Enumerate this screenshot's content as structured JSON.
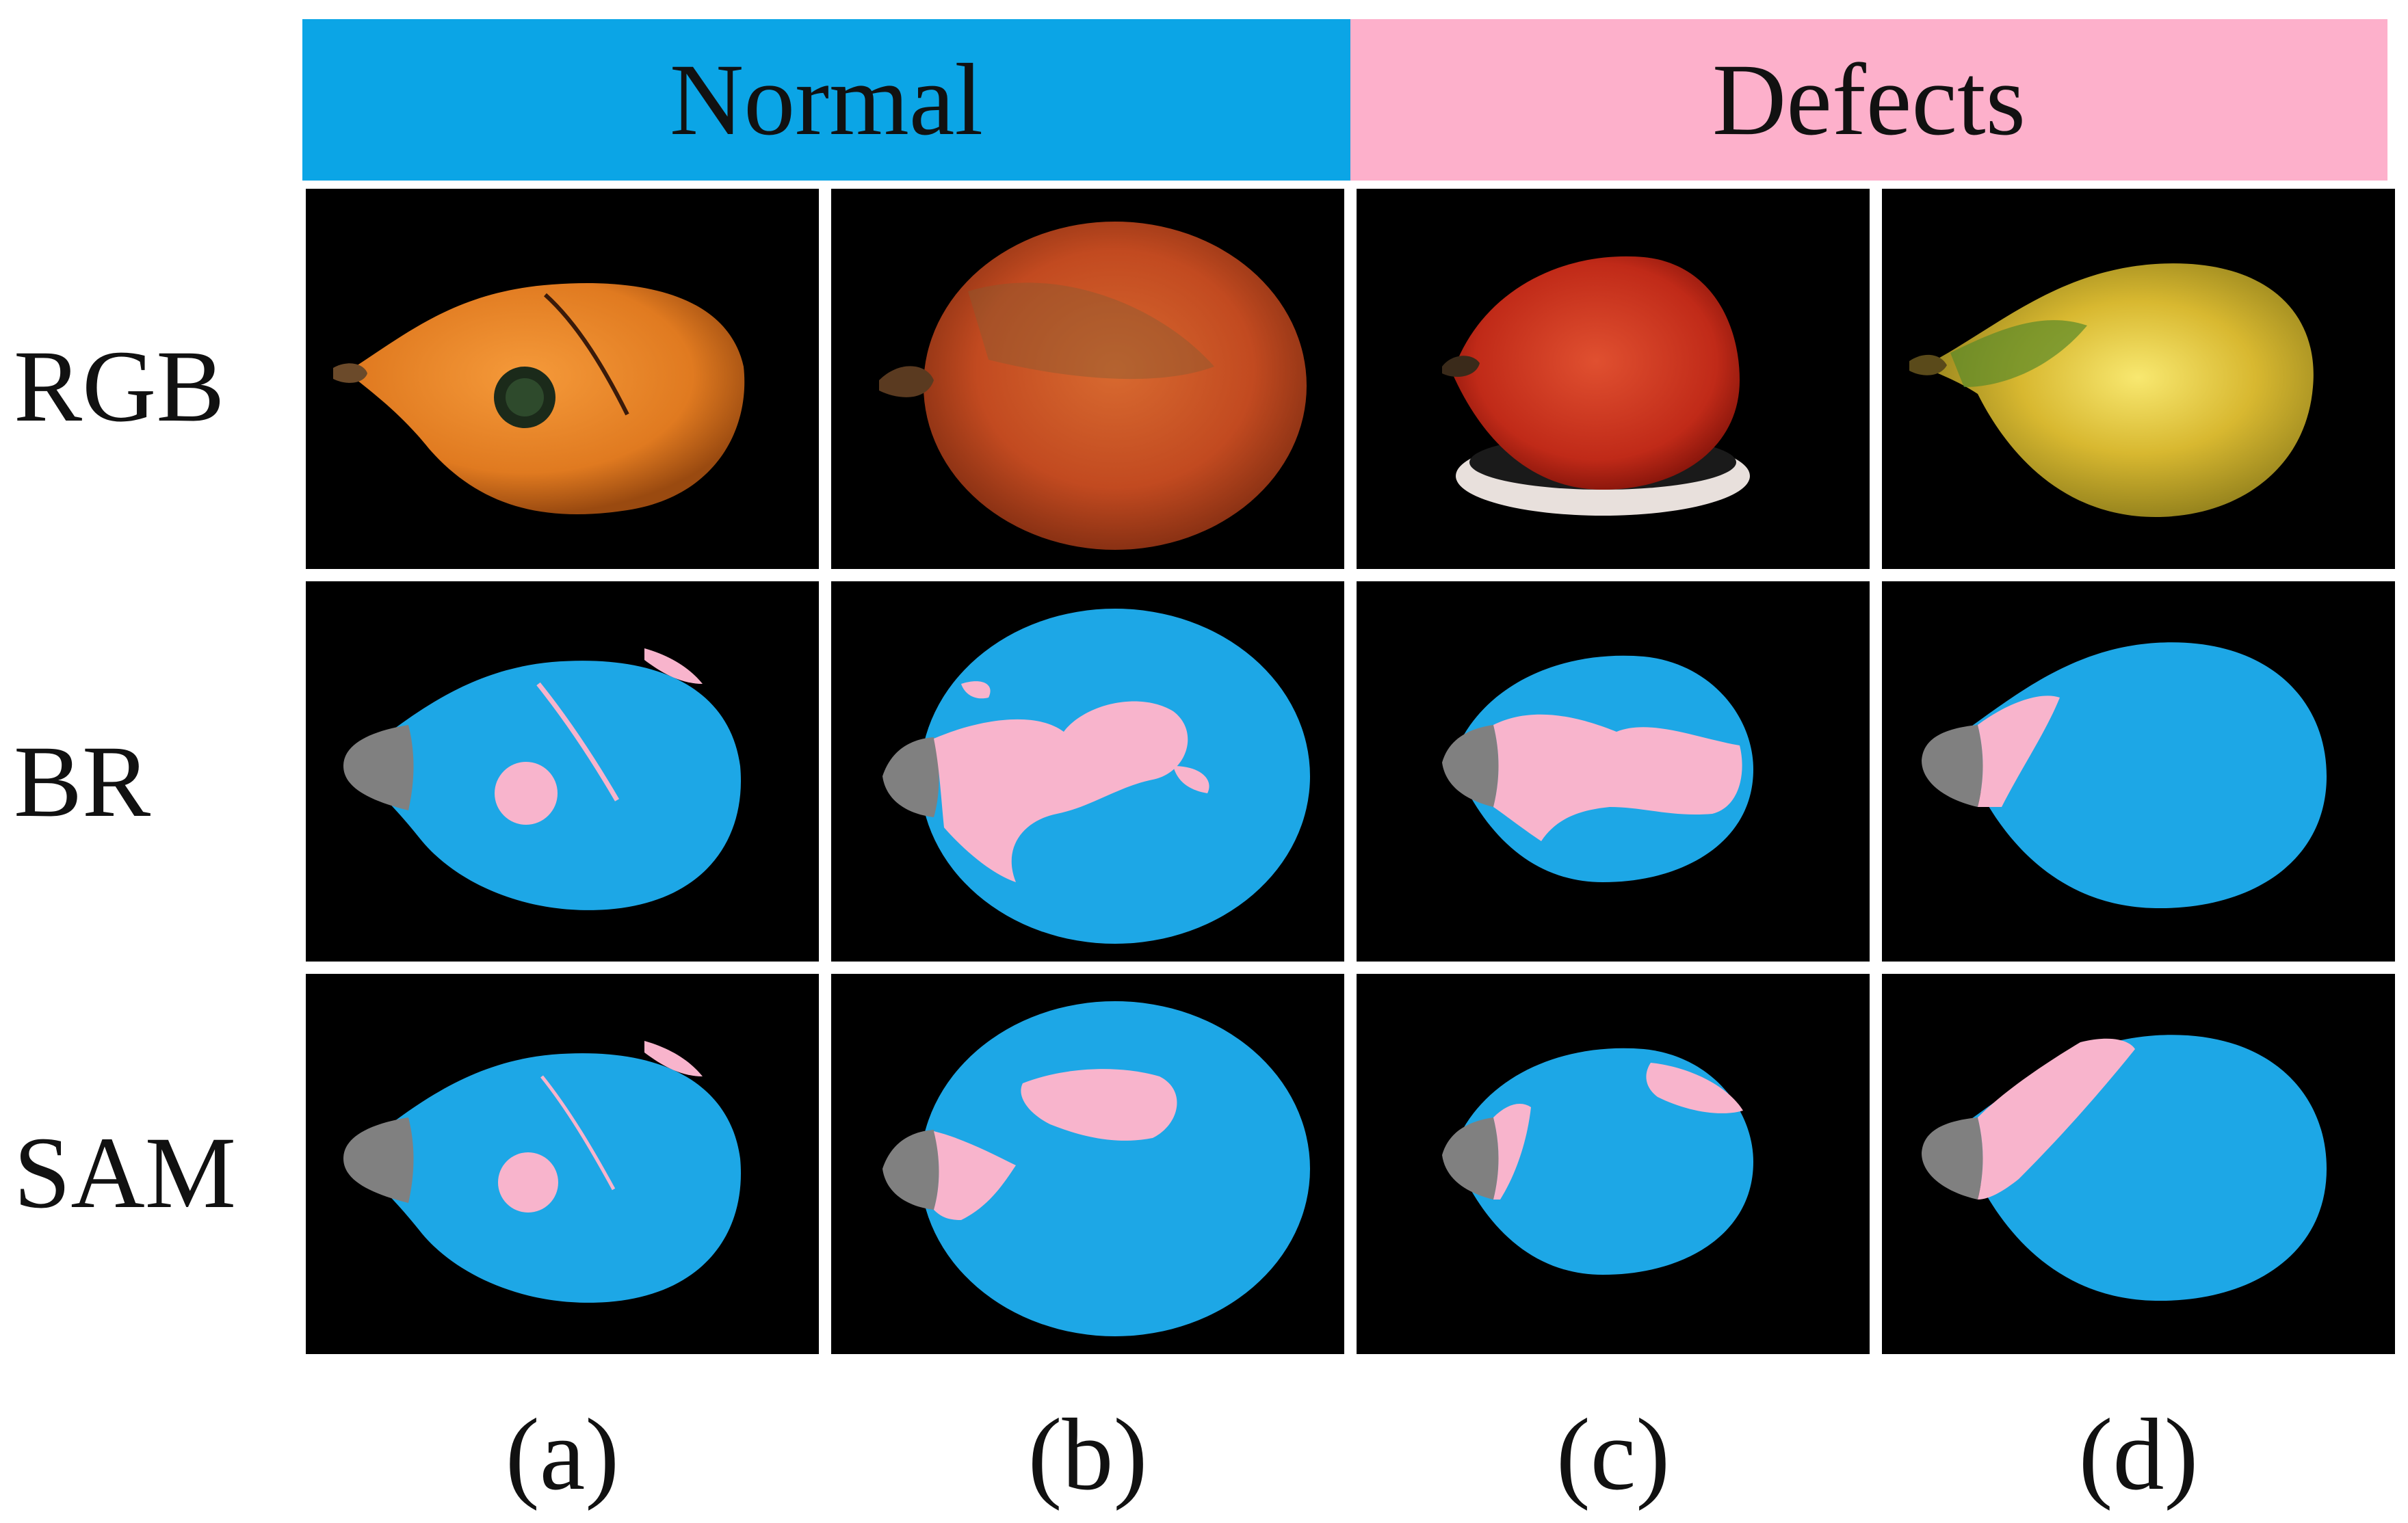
{
  "figure": {
    "header": {
      "normal": {
        "label": "Normal",
        "color": "#0BA5E6"
      },
      "defects": {
        "label": "Defects",
        "color": "#FDB0CB"
      }
    },
    "rows": [
      "RGB",
      "BR",
      "SAM"
    ],
    "columns": [
      "(a)",
      "(b)",
      "(c)",
      "(d)"
    ],
    "segmentation_colors": {
      "fruit": "#1DA7E6",
      "defect": "#F8B4CC",
      "stem": "#808080",
      "background": "#000000"
    }
  }
}
